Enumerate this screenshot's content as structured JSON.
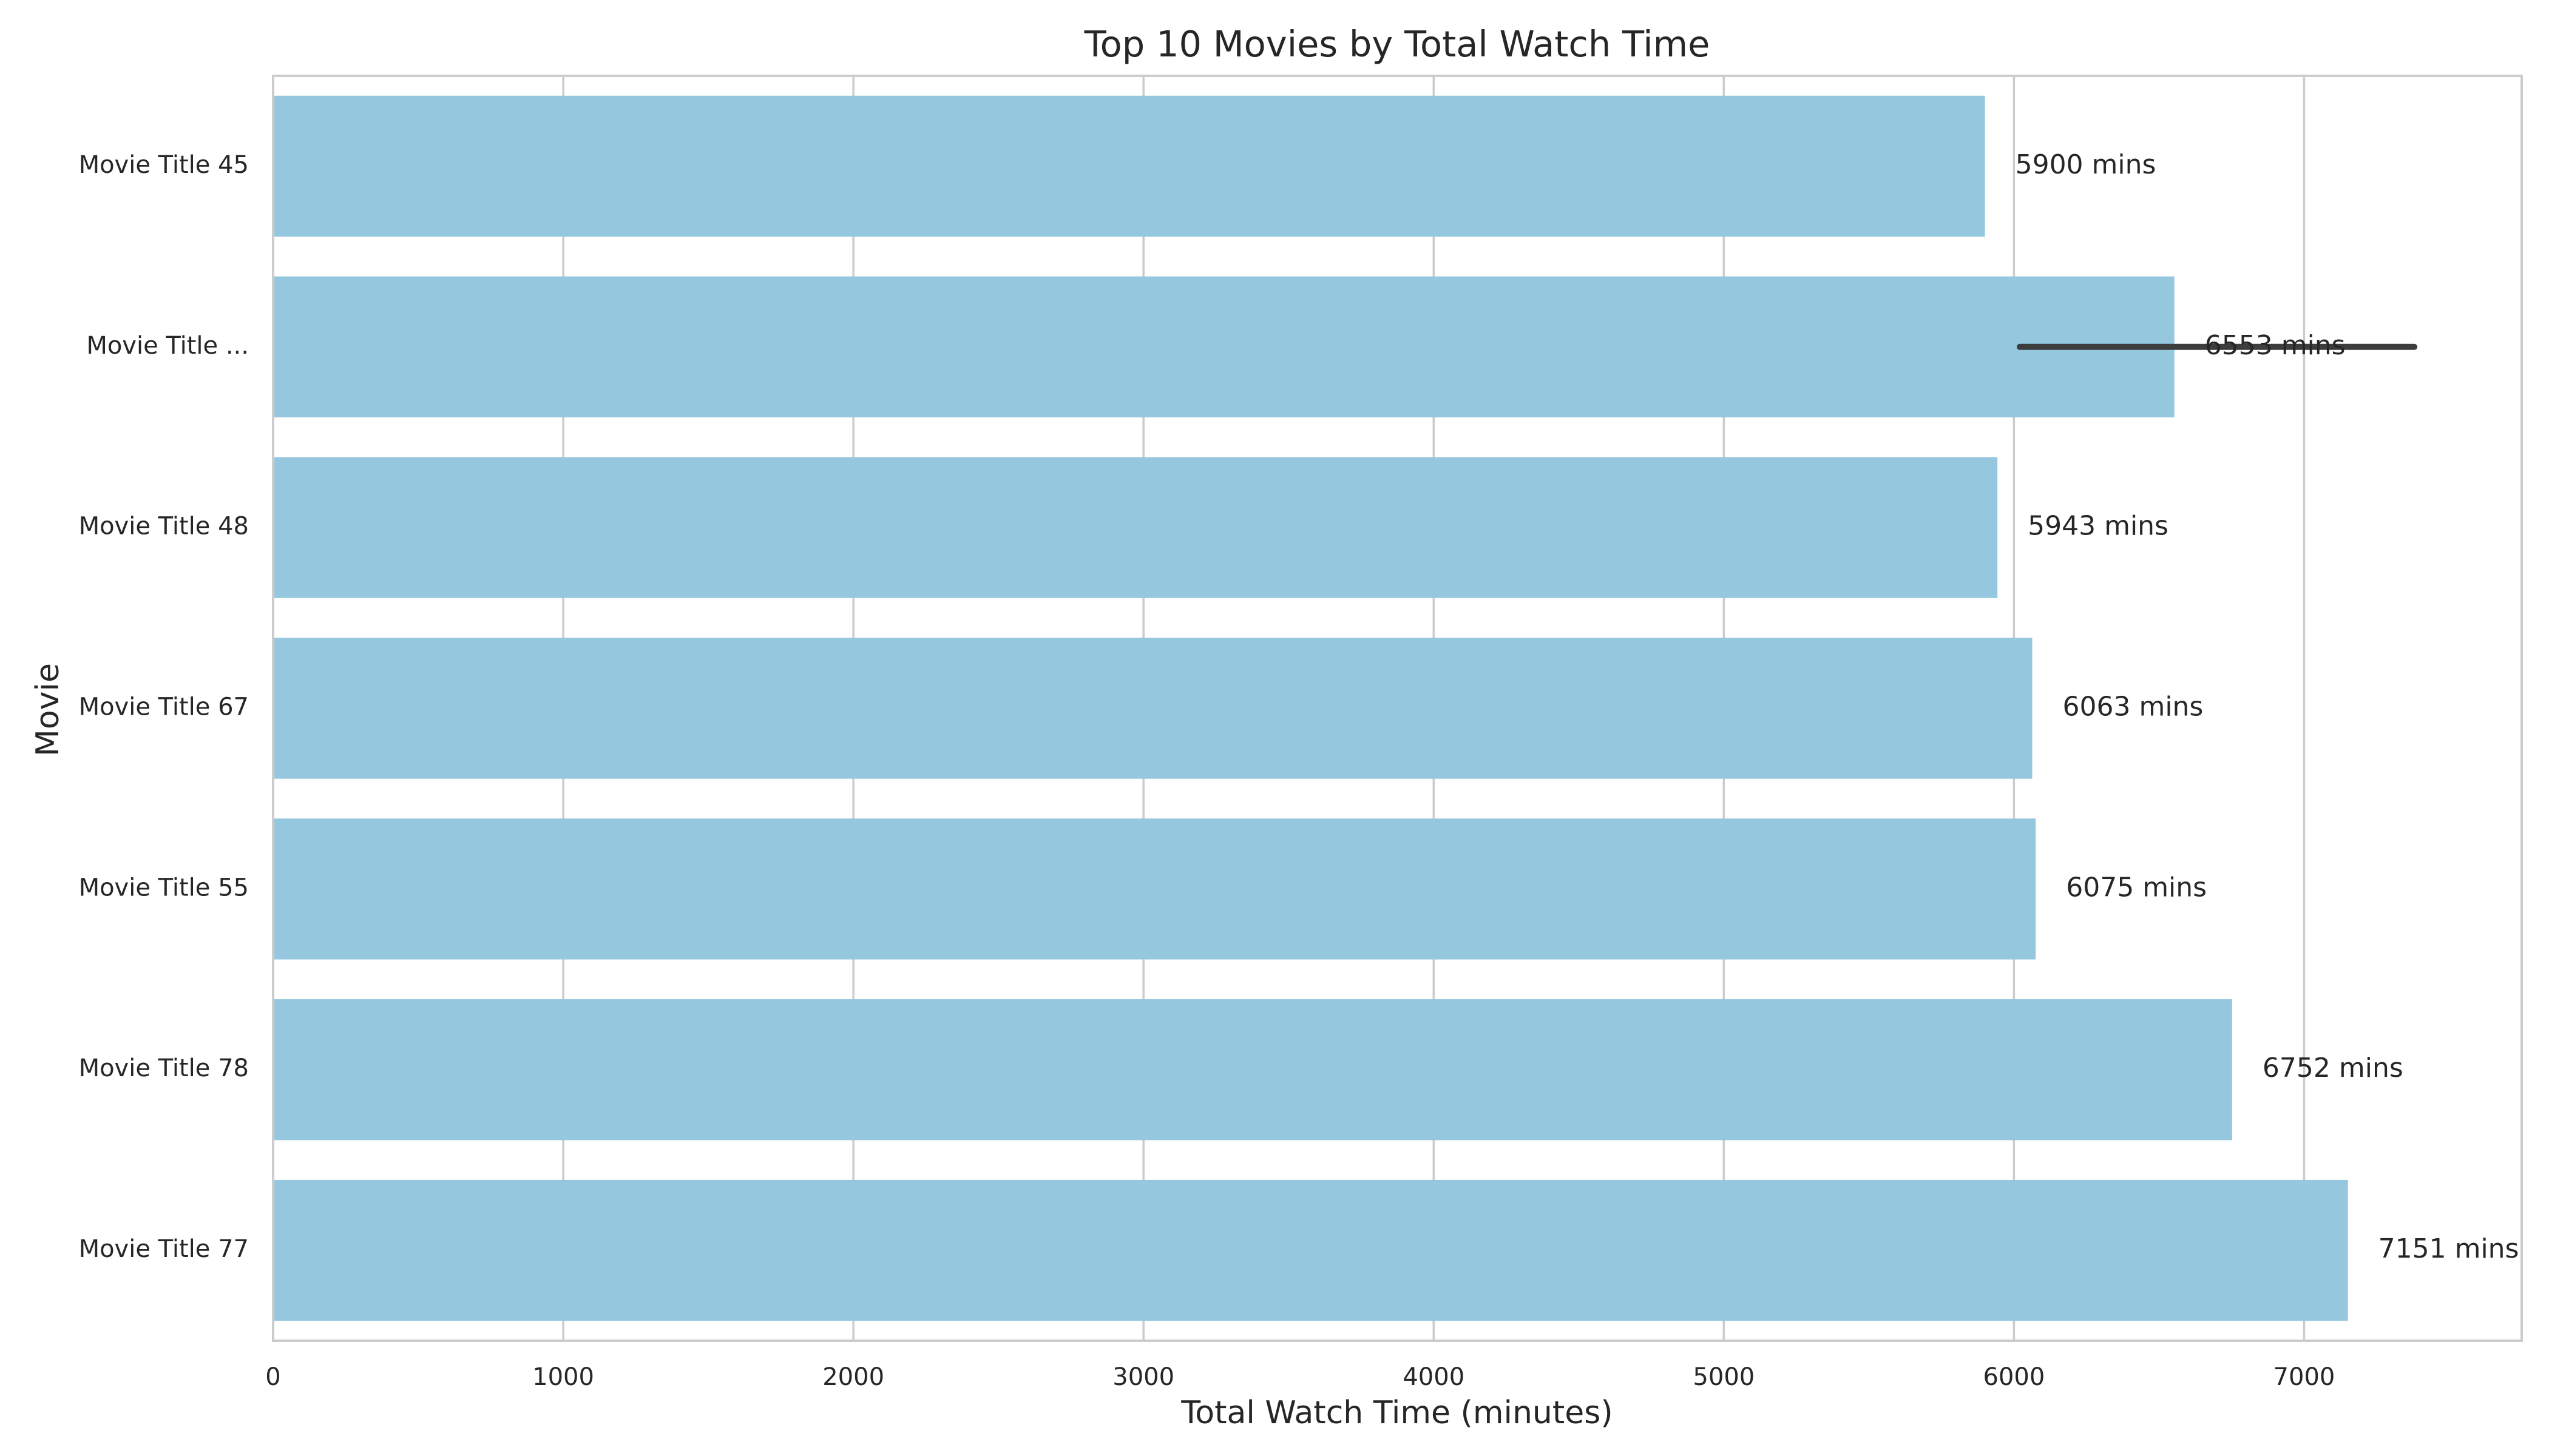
{
  "chart_data": {
    "type": "bar",
    "orientation": "horizontal",
    "title": "Top 10 Movies by Total Watch Time",
    "xlabel": "Total Watch Time (minutes)",
    "ylabel": "Movie",
    "xlim": [
      0,
      7750
    ],
    "xticks": [
      0,
      1000,
      2000,
      3000,
      4000,
      5000,
      6000,
      7000
    ],
    "grid": true,
    "bar_color": "#95c8de",
    "categories": [
      "Movie Title 45",
      "Movie Title ...",
      "Movie Title 48",
      "Movie Title 67",
      "Movie Title 55",
      "Movie Title 78",
      "Movie Title 77"
    ],
    "values": [
      5900,
      6553,
      5943,
      6063,
      6075,
      6752,
      7151
    ],
    "data_labels": [
      "5900 mins",
      "6553 mins",
      "5943 mins",
      "6063 mins",
      "6075 mins",
      "6752 mins",
      "7151 mins"
    ],
    "error_bars": [
      null,
      [
        6020,
        7380
      ],
      null,
      null,
      null,
      null,
      null
    ]
  }
}
